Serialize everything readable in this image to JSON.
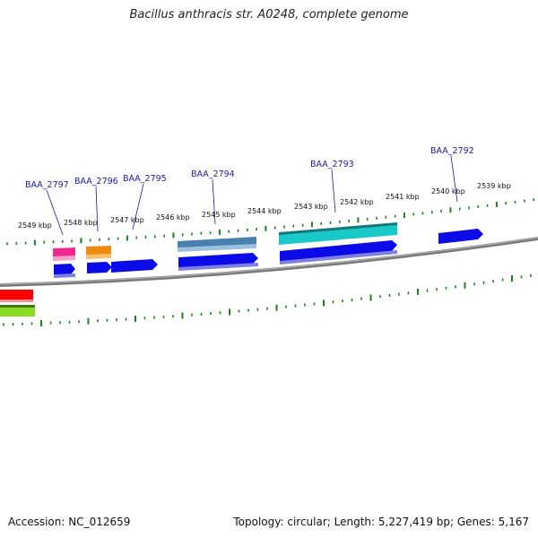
{
  "title": "Bacillus anthracis str. A0248, complete genome",
  "footer": {
    "accession_text": "Accession: NC_012659",
    "stats_text": "Topology: circular; Length: 5,227,419 bp; Genes: 5,167"
  },
  "colors": {
    "backbone": "#7a7a7a",
    "ticks": "#1f7f1f",
    "gene_label": "#1a1aa0",
    "cds_blue": "#0b0be8",
    "steel_blue": "#4a80b0",
    "cyan": "#19c8c8",
    "pink": "#ee2a90",
    "orange": "#ee8c10",
    "red": "#ff0000",
    "lime": "#88dd22"
  },
  "scale_labels": [
    "2549 kbp",
    "2548 kbp",
    "2547 kbp",
    "2546 kbp",
    "2545 kbp",
    "2544 kbp",
    "2543 kbp",
    "2542 kbp",
    "2541 kbp",
    "2540 kbp",
    "2539 kbp"
  ],
  "gene_labels": [
    "BAA_2797",
    "BAA_2796",
    "BAA_2795",
    "BAA_2794",
    "BAA_2793",
    "BAA_2792"
  ]
}
